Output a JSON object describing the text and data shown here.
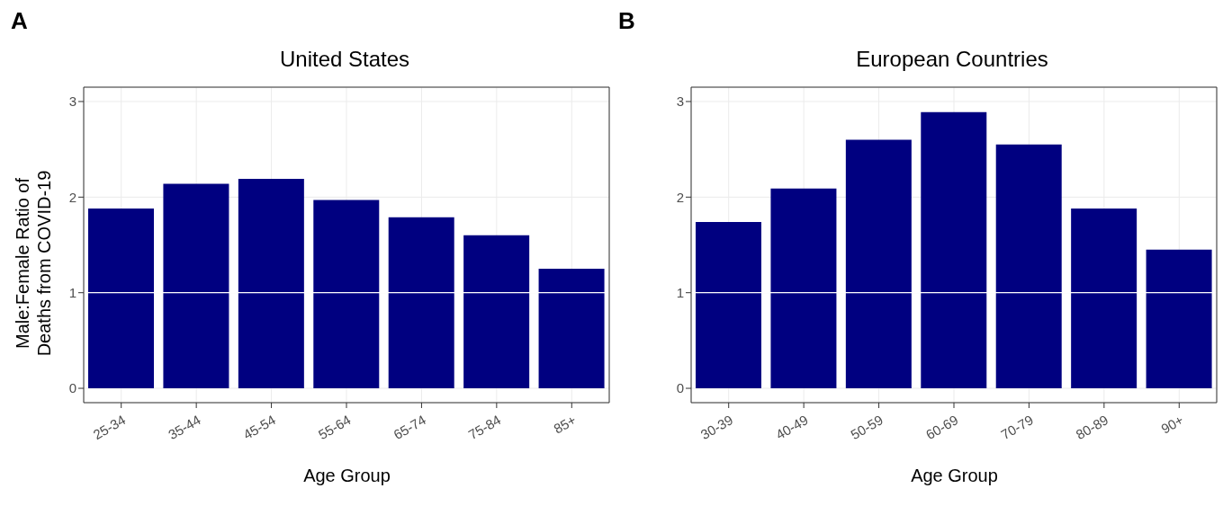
{
  "chart_data": [
    {
      "type": "bar",
      "title": "United States",
      "xlabel": "Age Group",
      "ylabel": "Male:Female Ratio of Deaths from COVID-19",
      "annotations": [
        "A"
      ],
      "categories": [
        "25-34",
        "35-44",
        "45-54",
        "55-64",
        "65-74",
        "75-84",
        "85+"
      ],
      "values": [
        1.88,
        2.14,
        2.19,
        1.97,
        1.79,
        1.6,
        1.25
      ],
      "color": "#000080",
      "ylim": [
        -0.15,
        3.15
      ],
      "yticks": [
        0,
        1,
        2,
        3
      ],
      "grid": true,
      "ref_lines": [
        {
          "axis": "y",
          "value": 1,
          "color": "#ffffff"
        }
      ]
    },
    {
      "type": "bar",
      "title": "European Countries",
      "xlabel": "Age Group",
      "annotations": [
        "B"
      ],
      "categories": [
        "30-39",
        "40-49",
        "50-59",
        "60-69",
        "70-79",
        "80-89",
        "90+"
      ],
      "values": [
        1.74,
        2.09,
        2.6,
        2.89,
        2.55,
        1.88,
        1.45
      ],
      "color": "#000080",
      "ylim": [
        -0.15,
        3.15
      ],
      "yticks": [
        0,
        1,
        2,
        3
      ],
      "grid": true,
      "ref_lines": [
        {
          "axis": "y",
          "value": 1,
          "color": "#ffffff"
        }
      ]
    }
  ]
}
